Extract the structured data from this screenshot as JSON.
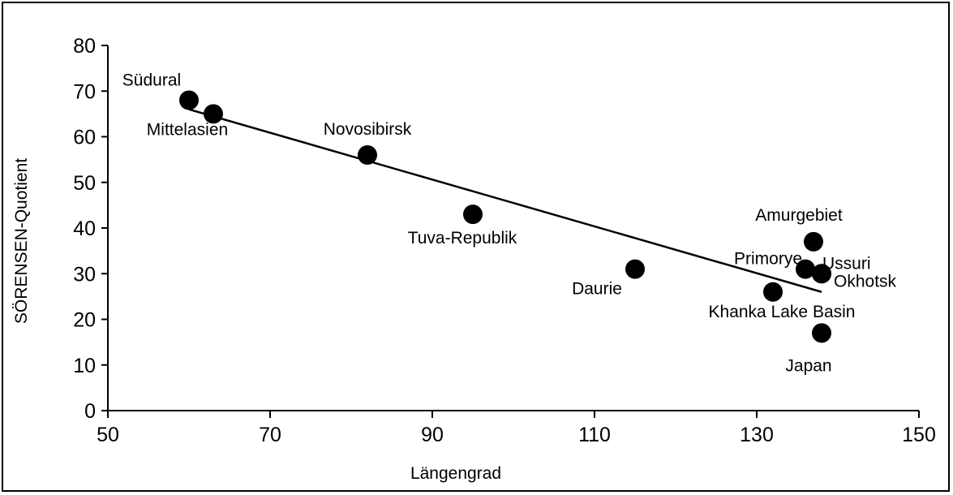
{
  "chart_data": {
    "type": "scatter",
    "title": "",
    "xlabel": "Längengrad",
    "ylabel": "SÖRENSEN-Quotient",
    "xlim": [
      50,
      150
    ],
    "ylim": [
      0,
      80
    ],
    "xticks": [
      50,
      70,
      90,
      110,
      130,
      150
    ],
    "yticks": [
      0,
      10,
      20,
      30,
      40,
      50,
      60,
      70,
      80
    ],
    "grid": false,
    "legend": "none",
    "marker_color": "#000000",
    "points": [
      {
        "label": "Südural",
        "x": 60,
        "y": 68
      },
      {
        "label": "Mittelasien",
        "x": 63,
        "y": 65
      },
      {
        "label": "Novosibirsk",
        "x": 82,
        "y": 56
      },
      {
        "label": "Tuva-Republik",
        "x": 95,
        "y": 43
      },
      {
        "label": "Daurie",
        "x": 115,
        "y": 31
      },
      {
        "label": "Khanka Lake Basin",
        "x": 132,
        "y": 26
      },
      {
        "label": "Amurgebiet",
        "x": 137,
        "y": 37
      },
      {
        "label": "Primorye",
        "x": 136,
        "y": 31
      },
      {
        "label": "Ussuri",
        "x": 138,
        "y": 30
      },
      {
        "label": "Okhotsk",
        "x": 138,
        "y": 30
      },
      {
        "label": "Japan",
        "x": 138,
        "y": 17
      }
    ],
    "trendline": {
      "x": [
        60,
        138
      ],
      "y": [
        66,
        26
      ]
    }
  }
}
